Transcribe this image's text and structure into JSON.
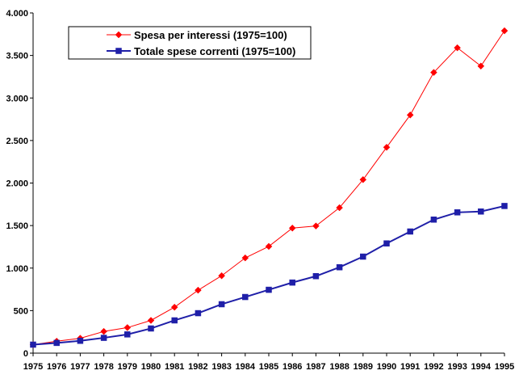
{
  "chart_data": {
    "type": "line",
    "title": "",
    "xlabel": "",
    "ylabel": "",
    "x": [
      "1975",
      "1976",
      "1977",
      "1978",
      "1979",
      "1980",
      "1981",
      "1982",
      "1983",
      "1984",
      "1985",
      "1986",
      "1987",
      "1988",
      "1989",
      "1990",
      "1991",
      "1992",
      "1993",
      "1994",
      "1995"
    ],
    "ylim": [
      0,
      4000
    ],
    "y_ticks": [
      0,
      500,
      1000,
      1500,
      2000,
      2500,
      3000,
      3500,
      4000
    ],
    "y_tick_labels": [
      "0",
      "500",
      "1.000",
      "1.500",
      "2.000",
      "2.500",
      "3.000",
      "3.500",
      "4.000"
    ],
    "grid": false,
    "legend_position": "top-left",
    "series": [
      {
        "name": "Spesa per interessi (1975=100)",
        "color": "#ff0000",
        "marker": "diamond",
        "values": [
          100,
          140,
          175,
          255,
          300,
          385,
          540,
          740,
          910,
          1120,
          1255,
          1470,
          1495,
          1710,
          2040,
          2420,
          2800,
          3300,
          3590,
          3375,
          3790
        ]
      },
      {
        "name": "Totale spese correnti (1975=100)",
        "color": "#1f1fa8",
        "marker": "square",
        "values": [
          100,
          120,
          145,
          180,
          220,
          290,
          385,
          470,
          575,
          660,
          745,
          830,
          905,
          1010,
          1135,
          1290,
          1430,
          1570,
          1655,
          1665,
          1730
        ]
      }
    ]
  }
}
